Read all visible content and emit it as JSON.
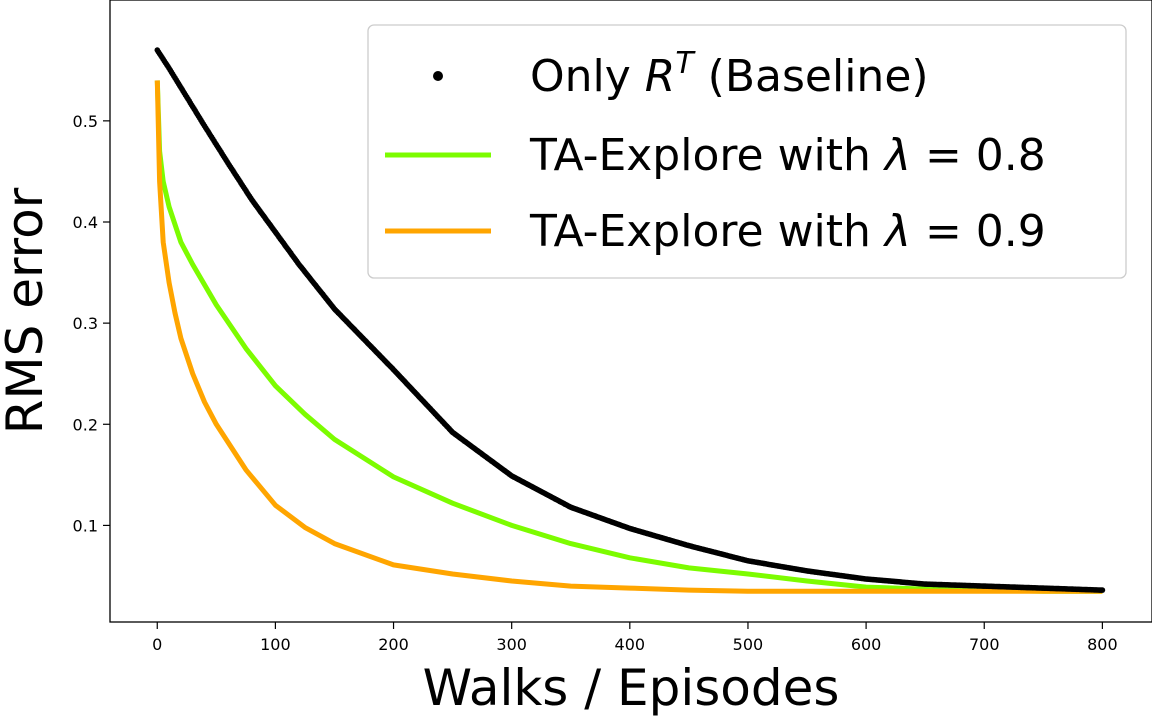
{
  "chart_data": {
    "type": "line",
    "title": "",
    "xlabel": "Walks / Episodes",
    "ylabel": "RMS error",
    "xlim": [
      -40,
      842
    ],
    "ylim": [
      0.0045,
      0.6195
    ],
    "xticks": [
      0,
      100,
      200,
      300,
      400,
      500,
      600,
      700,
      800
    ],
    "yticks": [
      0.1,
      0.2,
      0.3,
      0.4,
      0.5
    ],
    "grid": false,
    "legend_position": "top-right",
    "series": [
      {
        "name_prefix": "Only ",
        "name_math": "R",
        "name_sup": "T",
        "name_suffix": " (Baseline)",
        "style": "dots",
        "color": "#000000",
        "x": [
          0,
          10,
          20,
          40,
          60,
          80,
          100,
          120,
          150,
          200,
          250,
          300,
          350,
          400,
          450,
          500,
          550,
          600,
          650,
          700,
          750,
          800
        ],
        "y": [
          0.57,
          0.552,
          0.533,
          0.495,
          0.458,
          0.422,
          0.39,
          0.358,
          0.314,
          0.254,
          0.192,
          0.149,
          0.118,
          0.097,
          0.08,
          0.065,
          0.055,
          0.047,
          0.042,
          0.04,
          0.038,
          0.036
        ]
      },
      {
        "name_prefix": "TA-Explore with ",
        "name_math": "λ",
        "name_suffix": " = 0.8",
        "style": "line",
        "color": "#7cfc00",
        "x": [
          0,
          2,
          5,
          10,
          20,
          30,
          50,
          75,
          100,
          125,
          150,
          200,
          250,
          300,
          350,
          400,
          450,
          500,
          550,
          600,
          650,
          700,
          750,
          800
        ],
        "y": [
          0.54,
          0.47,
          0.44,
          0.415,
          0.38,
          0.358,
          0.318,
          0.275,
          0.238,
          0.21,
          0.185,
          0.148,
          0.122,
          0.1,
          0.082,
          0.068,
          0.058,
          0.052,
          0.045,
          0.039,
          0.037,
          0.036,
          0.035,
          0.035
        ]
      },
      {
        "name_prefix": "TA-Explore with ",
        "name_math": "λ",
        "name_suffix": " = 0.9",
        "style": "line",
        "color": "#ffa500",
        "x": [
          0,
          2,
          5,
          10,
          15,
          20,
          30,
          40,
          50,
          75,
          100,
          125,
          150,
          200,
          250,
          300,
          350,
          400,
          450,
          500,
          600,
          700,
          800
        ],
        "y": [
          0.54,
          0.44,
          0.38,
          0.34,
          0.31,
          0.285,
          0.25,
          0.222,
          0.2,
          0.155,
          0.12,
          0.098,
          0.082,
          0.061,
          0.052,
          0.045,
          0.04,
          0.038,
          0.036,
          0.035,
          0.035,
          0.035,
          0.035
        ]
      }
    ]
  }
}
